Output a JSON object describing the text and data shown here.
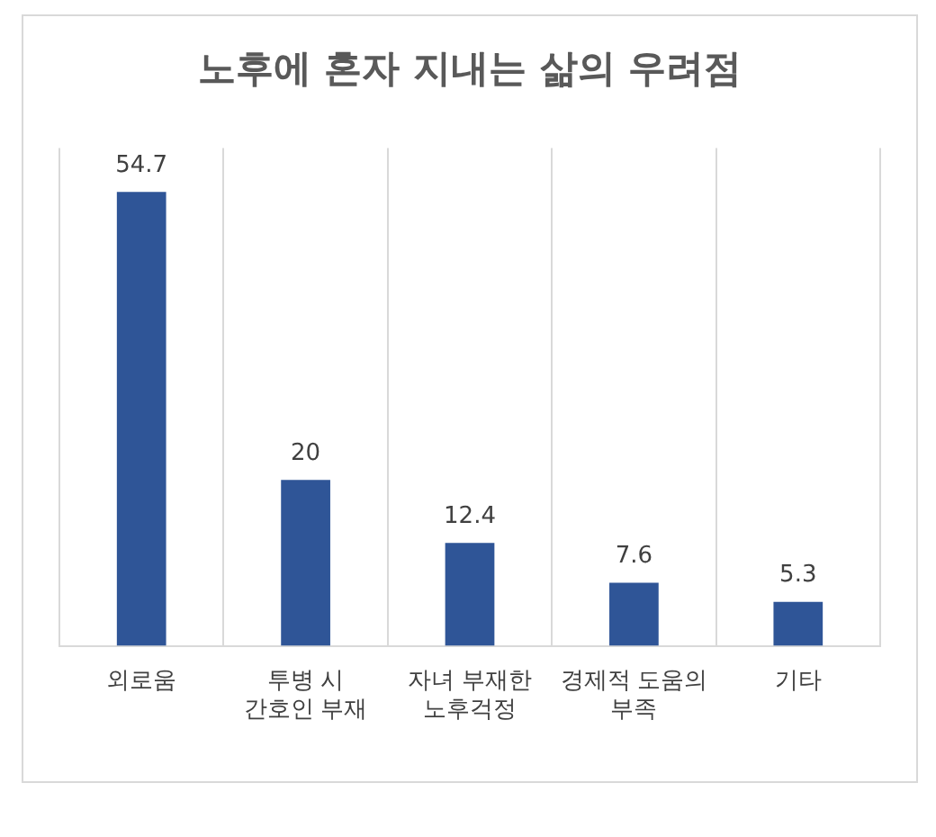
{
  "chart_data": {
    "type": "bar",
    "title": "노후에 혼자 지내는 삶의 우려점",
    "categories": [
      "외로움",
      "투병 시 간호인 부재",
      "자녀 부재한 노후걱정",
      "경제적 도움의 부족",
      "기타"
    ],
    "values": [
      54.7,
      20,
      12.4,
      7.6,
      5.3
    ],
    "color": "#2f5597",
    "data_labels": true,
    "grid": "x"
  }
}
